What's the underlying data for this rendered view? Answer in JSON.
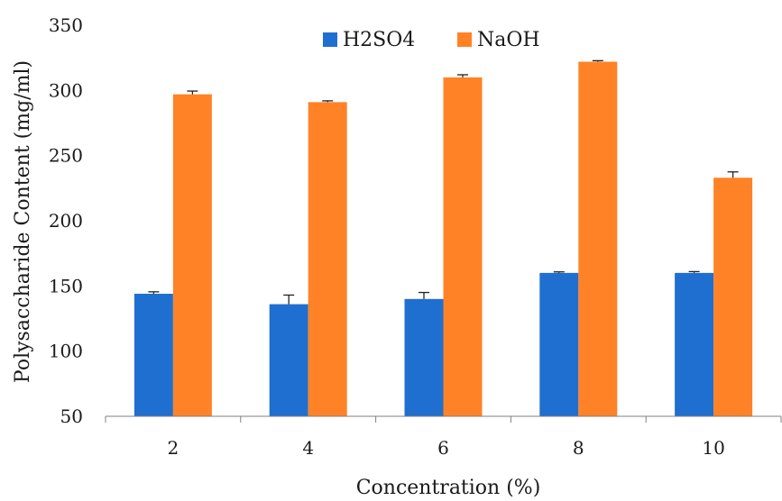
{
  "chart_data": {
    "type": "bar",
    "categories": [
      "2",
      "4",
      "6",
      "8",
      "10"
    ],
    "series": [
      {
        "name": "H2SO4",
        "values": [
          144,
          136,
          140,
          160,
          160
        ],
        "errors": [
          1.5,
          7,
          5,
          0.8,
          1.0
        ],
        "color": "#1f6fd0"
      },
      {
        "name": "NaOH",
        "values": [
          297,
          291,
          310,
          322,
          233
        ],
        "errors": [
          2.5,
          1.0,
          2.0,
          0.8,
          4.5
        ],
        "color": "#ff8227"
      }
    ],
    "xlabel": "Concentration (%)",
    "ylabel": "Polysaccharide Content (mg/ml)",
    "ylim": [
      50,
      350
    ],
    "yticks": [
      "50",
      "100",
      "150",
      "200",
      "250",
      "300",
      "350"
    ],
    "grid": false,
    "legend": "top-center"
  }
}
